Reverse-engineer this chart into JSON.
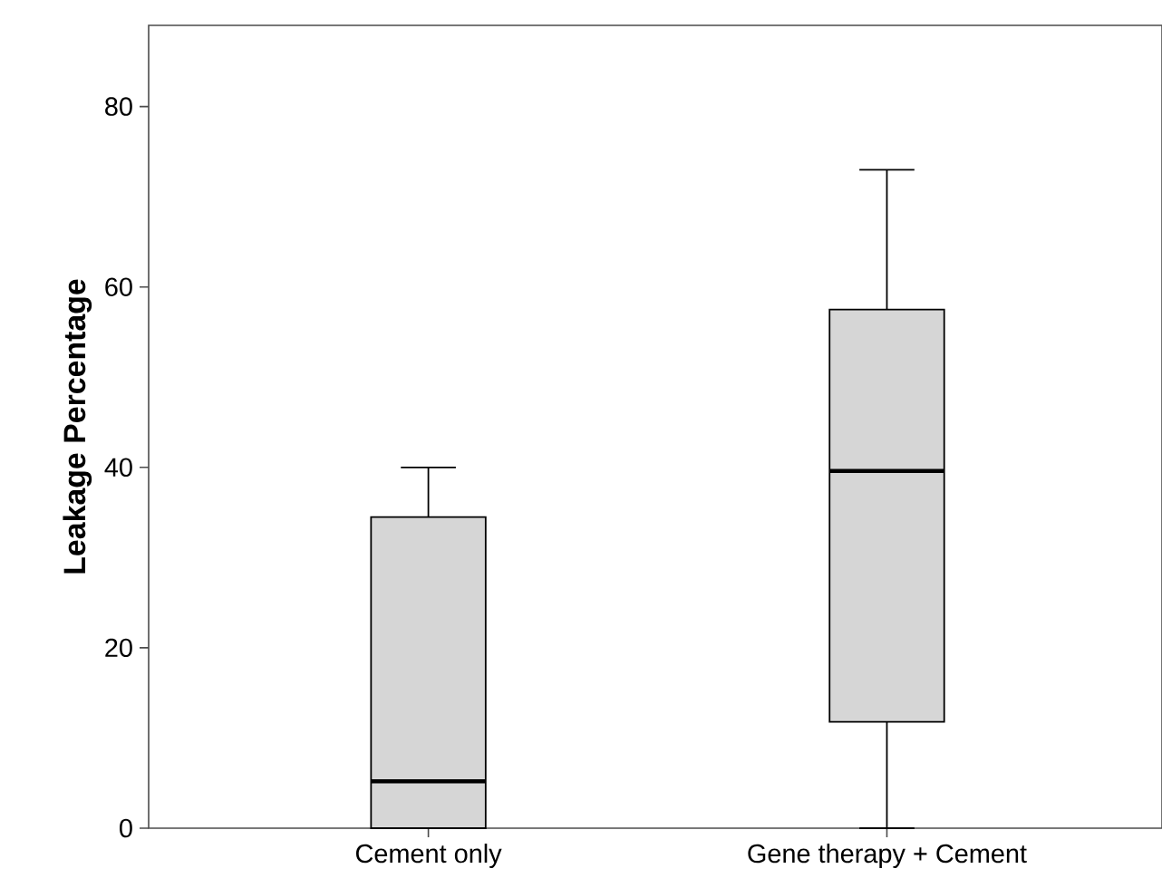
{
  "chart_data": {
    "type": "box",
    "ylabel": "Leakage Percentage",
    "categories": [
      "Cement only",
      "Gene therapy + Cement"
    ],
    "boxes": [
      {
        "low": 0,
        "q1": 0,
        "median": 5.2,
        "q3": 34.5,
        "high": 40
      },
      {
        "low": 0,
        "q1": 11.8,
        "median": 39.6,
        "q3": 57.5,
        "high": 73
      }
    ],
    "color": "#d6d6d6",
    "ylim": [
      0,
      89
    ],
    "yticks": [
      0,
      20,
      40,
      60,
      80
    ]
  }
}
